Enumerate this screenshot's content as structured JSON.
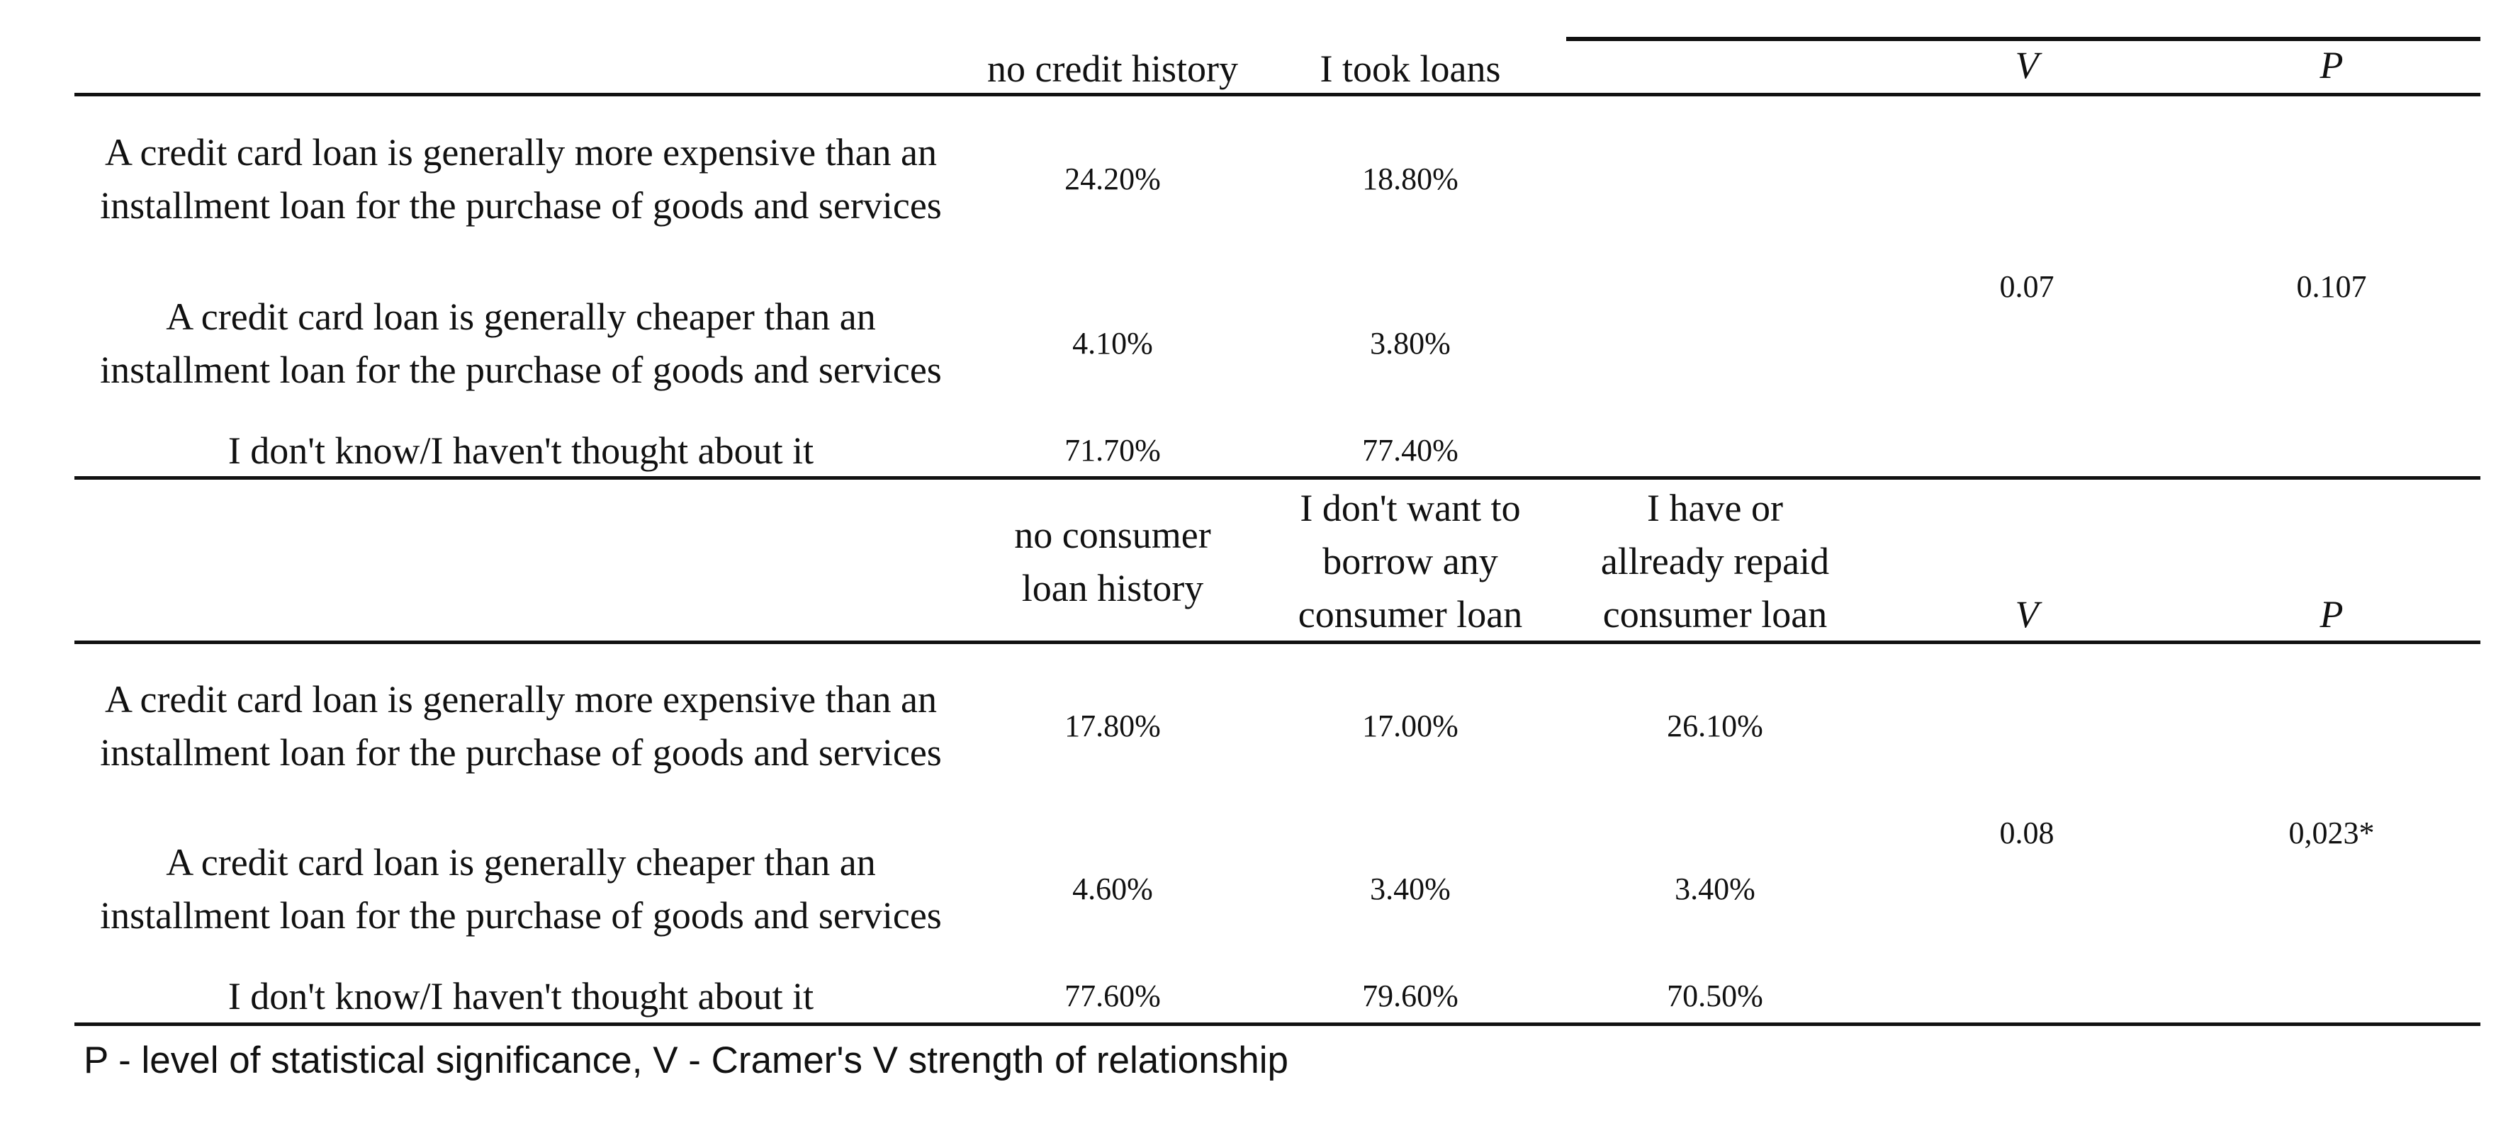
{
  "table1": {
    "headers": [
      "no credit history",
      "I took loans",
      "V",
      "P"
    ],
    "rows": [
      {
        "label": "A credit card loan is generally more expensive than an installment loan for the purchase of goods and services",
        "values": [
          "24.20%",
          "18.80%"
        ]
      },
      {
        "label": "A credit card loan is generally cheaper than an installment loan for the purchase of goods and services",
        "values": [
          "4.10%",
          "3.80%"
        ]
      },
      {
        "label": "I don't know/I haven't thought about it",
        "values": [
          "71.70%",
          "77.40%"
        ]
      }
    ],
    "V": "0.07",
    "P": "0.107"
  },
  "table2": {
    "headers": [
      "no consumer loan history",
      "I don't want to borrow any consumer loan",
      "I have or allready repaid consumer loan",
      "V",
      "P"
    ],
    "rows": [
      {
        "label": "A credit card loan is generally more expensive than an installment loan for the purchase of goods and services",
        "values": [
          "17.80%",
          "17.00%",
          "26.10%"
        ]
      },
      {
        "label": "A credit card loan is generally cheaper than an installment loan for the purchase of goods and services",
        "values": [
          "4.60%",
          "3.40%",
          "3.40%"
        ]
      },
      {
        "label": "I don't know/I haven't thought about it",
        "values": [
          "77.60%",
          "79.60%",
          "70.50%"
        ]
      }
    ],
    "V": "0.08",
    "P": "0,023*"
  },
  "footnote": "P - level of statistical significance, V - Cramer's V strength of relationship"
}
